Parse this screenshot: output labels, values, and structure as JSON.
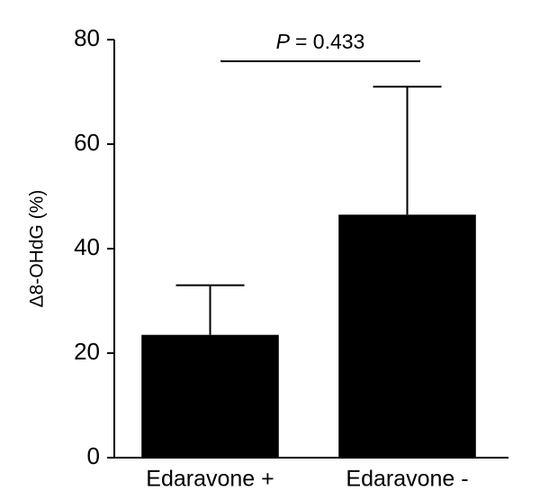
{
  "chart_data": {
    "type": "bar",
    "y_label": "Δ8-OHdG (%)",
    "categories": [
      "Edaravone +",
      "Edaravone -"
    ],
    "values": [
      23.5,
      46.5
    ],
    "errors": [
      9.5,
      24.5
    ],
    "color": "#000000",
    "ylim": [
      0,
      80
    ],
    "yticks": [
      0,
      20,
      40,
      60,
      80
    ],
    "grid": false,
    "annotation": {
      "p_symbol": "P",
      "text": "= 0.433"
    }
  }
}
